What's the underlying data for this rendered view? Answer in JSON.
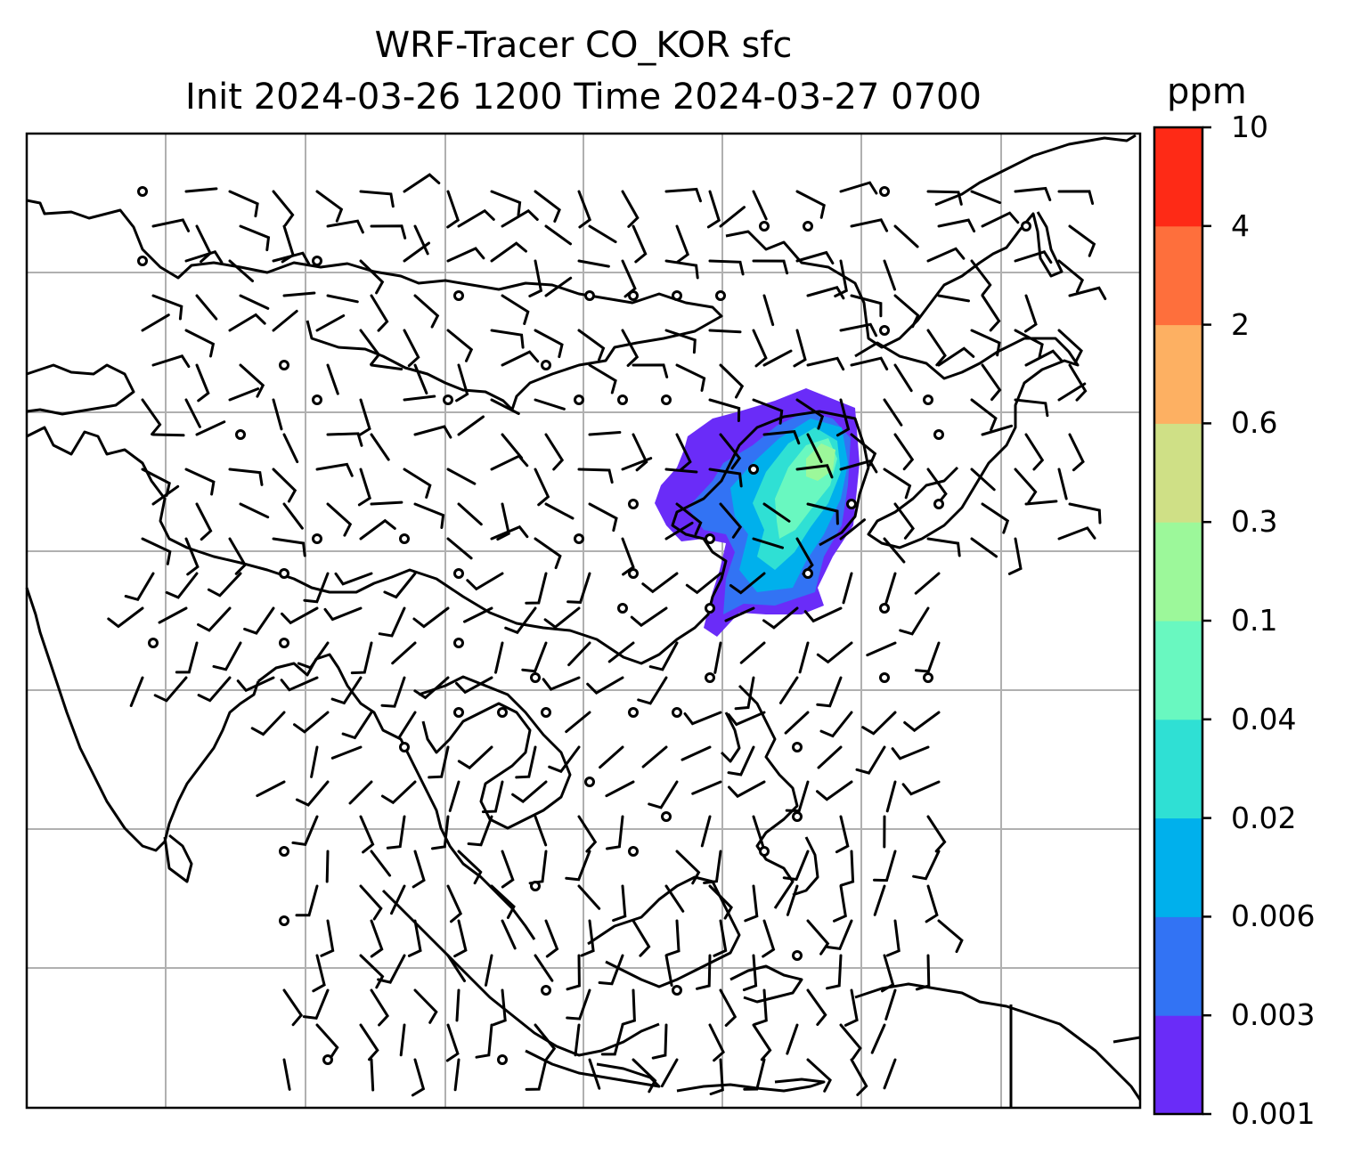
{
  "title": {
    "line1": "WRF-Tracer CO_KOR sfc",
    "line2": "Init 2024-03-26 1200 Time 2024-03-27 0700"
  },
  "colorbar": {
    "unit": "ppm",
    "levels": [
      "0.001",
      "0.003",
      "0.006",
      "0.02",
      "0.04",
      "0.1",
      "0.3",
      "0.6",
      "2",
      "4",
      "10"
    ],
    "colors": [
      "#6a2cf8",
      "#3273f4",
      "#00b0ec",
      "#2fe0d4",
      "#69f8c0",
      "#9cf89a",
      "#cfe086",
      "#fdb062",
      "#fe6f3c",
      "#fe2a16"
    ]
  },
  "map": {
    "gridlines": true,
    "coastlines": true,
    "plume": {
      "levels_shown": [
        "0.001",
        "0.003",
        "0.006",
        "0.02",
        "0.04",
        "0.1"
      ],
      "colors": [
        "#6a2cf8",
        "#3273f4",
        "#00b0ec",
        "#2fe0d4",
        "#69f8c0",
        "#9cf89a"
      ]
    },
    "wind_barbs": true
  }
}
